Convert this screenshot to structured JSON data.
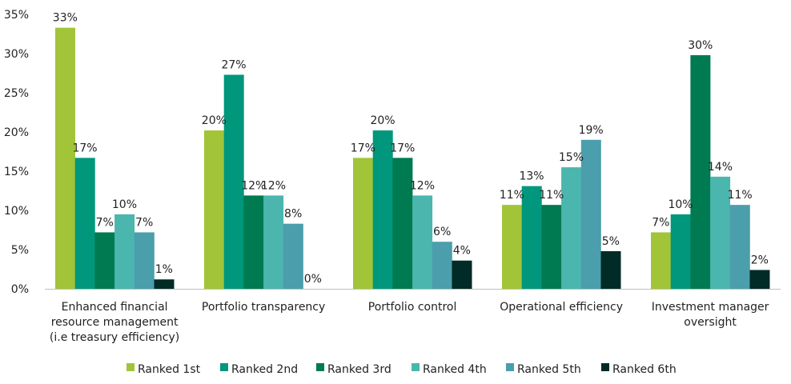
{
  "chart_data": {
    "type": "bar",
    "title": "",
    "xlabel": "",
    "ylabel": "",
    "ylim": [
      0,
      35
    ],
    "yticks": [
      0,
      5,
      10,
      15,
      20,
      25,
      30,
      35
    ],
    "ytick_labels": [
      "0%",
      "5%",
      "10%",
      "15%",
      "20%",
      "25%",
      "30%",
      "35%"
    ],
    "grid": false,
    "legend_position": "bottom",
    "categories": [
      [
        "Enhanced financial",
        "resource management",
        "(i.e treasury efficiency)"
      ],
      [
        "Portfolio transparency"
      ],
      [
        "Portfolio control"
      ],
      [
        "Operational efficiency"
      ],
      [
        "Investment manager",
        "oversight"
      ]
    ],
    "series": [
      {
        "name": "Ranked 1st",
        "color": "#a2c438",
        "values": [
          33.3,
          20.2,
          16.7,
          10.7,
          7.2
        ],
        "labels": [
          "33%",
          "20%",
          "17%",
          "11%",
          "7%"
        ]
      },
      {
        "name": "Ranked 2nd",
        "color": "#00977c",
        "values": [
          16.7,
          27.3,
          20.2,
          13.1,
          9.5
        ],
        "labels": [
          "17%",
          "27%",
          "20%",
          "13%",
          "10%"
        ]
      },
      {
        "name": "Ranked 3rd",
        "color": "#007a50",
        "values": [
          7.2,
          11.9,
          16.7,
          10.7,
          29.8
        ],
        "labels": [
          "7%",
          "12%",
          "17%",
          "11%",
          "30%"
        ]
      },
      {
        "name": "Ranked 4th",
        "color": "#4bb6ad",
        "values": [
          9.5,
          11.9,
          11.9,
          15.5,
          14.3
        ],
        "labels": [
          "10%",
          "12%",
          "12%",
          "15%",
          "14%"
        ]
      },
      {
        "name": "Ranked 5th",
        "color": "#4b9eac",
        "values": [
          7.2,
          8.3,
          6.0,
          19.0,
          10.7
        ],
        "labels": [
          "7%",
          "8%",
          "6%",
          "19%",
          "11%"
        ]
      },
      {
        "name": "Ranked 6th",
        "color": "#002b26",
        "values": [
          1.2,
          0.0,
          3.6,
          4.8,
          2.4
        ],
        "labels": [
          "1%",
          "0%",
          "4%",
          "5%",
          "2%"
        ]
      }
    ]
  }
}
